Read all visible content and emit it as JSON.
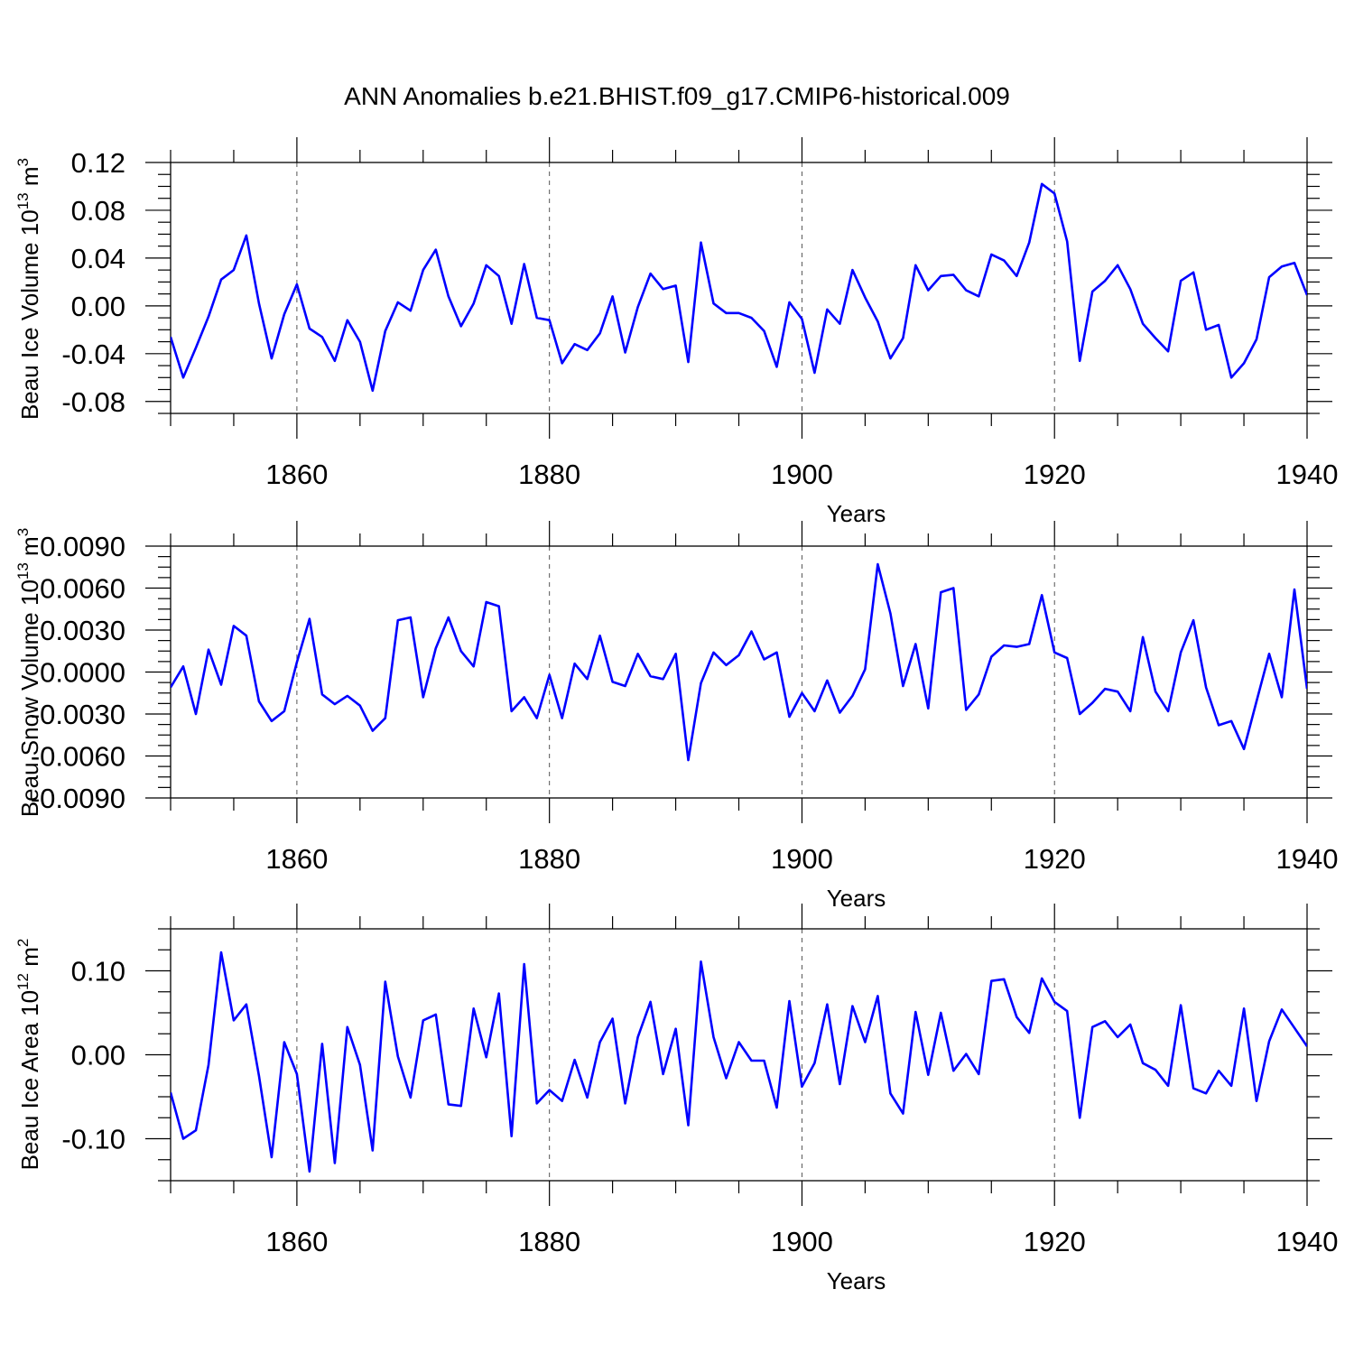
{
  "title": "ANN Anomalies b.e21.BHIST.f09_g17.CMIP6-historical.009",
  "colors": {
    "line": "#0000ff",
    "axis": "#000000",
    "grid": "#555555",
    "background": "#ffffff"
  },
  "chart_data": [
    {
      "type": "line",
      "ylabel": "Beau Ice Volume 10",
      "ylabel_exp": "13",
      "ylabel_unit": "m",
      "ylabel_unit_exp": "3",
      "xlabel": "Years",
      "xlim": [
        1850,
        1940
      ],
      "ylim": [
        -0.09,
        0.12
      ],
      "yticks": [
        0.12,
        0.08,
        0.04,
        0.0,
        -0.04,
        -0.08
      ],
      "ytick_labels": [
        "0.12",
        "0.08",
        "0.04",
        "0.00",
        "-0.04",
        "-0.08"
      ],
      "xticks": [
        1860,
        1880,
        1900,
        1920,
        1940
      ],
      "xtick_labels": [
        "1860",
        "1880",
        "1900",
        "1920",
        "1940"
      ],
      "grid": "vertical dashed at major x ticks",
      "series": [
        {
          "name": "Beau Ice Volume",
          "x_start": 1850,
          "values": [
            -0.026,
            -0.06,
            -0.035,
            -0.009,
            0.022,
            0.03,
            0.059,
            0.002,
            -0.044,
            -0.007,
            0.018,
            -0.019,
            -0.026,
            -0.046,
            -0.012,
            -0.03,
            -0.071,
            -0.021,
            0.003,
            -0.004,
            0.03,
            0.047,
            0.008,
            -0.017,
            0.002,
            0.034,
            0.025,
            -0.015,
            0.035,
            -0.01,
            -0.012,
            -0.048,
            -0.032,
            -0.037,
            -0.023,
            0.008,
            -0.039,
            -0.001,
            0.027,
            0.014,
            0.017,
            -0.047,
            0.053,
            0.002,
            -0.006,
            -0.006,
            -0.01,
            -0.021,
            -0.051,
            0.003,
            -0.011,
            -0.056,
            -0.003,
            -0.015,
            0.03,
            0.007,
            -0.013,
            -0.044,
            -0.027,
            0.034,
            0.013,
            0.025,
            0.026,
            0.013,
            0.008,
            0.043,
            0.038,
            0.025,
            0.053,
            0.102,
            0.094,
            0.054,
            -0.046,
            0.012,
            0.021,
            0.034,
            0.014,
            -0.015,
            -0.027,
            -0.038,
            0.021,
            0.028,
            -0.02,
            -0.016,
            -0.06,
            -0.048,
            -0.028,
            0.024,
            0.033,
            0.036,
            0.009
          ]
        }
      ]
    },
    {
      "type": "line",
      "ylabel": "Beau Snow Volume 10",
      "ylabel_exp": "13",
      "ylabel_unit": "m",
      "ylabel_unit_exp": "3",
      "xlabel": "Years",
      "xlim": [
        1850,
        1940
      ],
      "ylim": [
        -0.009,
        0.009
      ],
      "yticks": [
        0.009,
        0.006,
        0.003,
        0.0,
        -0.003,
        -0.006,
        -0.009
      ],
      "ytick_labels": [
        "0.0090",
        "0.0060",
        "0.0030",
        "0.0000",
        "-0.0030",
        "-0.0060",
        "-0.0090"
      ],
      "xticks": [
        1860,
        1880,
        1900,
        1920,
        1940
      ],
      "xtick_labels": [
        "1860",
        "1880",
        "1900",
        "1920",
        "1940"
      ],
      "grid": "vertical dashed at major x ticks",
      "series": [
        {
          "name": "Beau Snow Volume",
          "x_start": 1850,
          "values": [
            -0.0011,
            0.0004,
            -0.003,
            0.0016,
            -0.0009,
            0.0033,
            0.0026,
            -0.0021,
            -0.0035,
            -0.0028,
            0.0007,
            0.0038,
            -0.0016,
            -0.0023,
            -0.0017,
            -0.0024,
            -0.0042,
            -0.0033,
            0.0037,
            0.0039,
            -0.0018,
            0.0017,
            0.0039,
            0.0015,
            0.0004,
            0.005,
            0.0047,
            -0.0028,
            -0.0018,
            -0.0033,
            -0.0002,
            -0.0033,
            0.0006,
            -0.0005,
            0.0026,
            -0.0007,
            -0.001,
            0.0013,
            -0.0003,
            -0.0005,
            0.0013,
            -0.0063,
            -0.0008,
            0.0014,
            0.0005,
            0.0012,
            0.0029,
            0.0009,
            0.0014,
            -0.0032,
            -0.0015,
            -0.0028,
            -0.0006,
            -0.0029,
            -0.0017,
            0.0002,
            0.0077,
            0.0042,
            -0.001,
            0.002,
            -0.0026,
            0.0057,
            0.006,
            -0.0027,
            -0.0016,
            0.0011,
            0.0019,
            0.0018,
            0.002,
            0.0055,
            0.0014,
            0.001,
            -0.003,
            -0.0022,
            -0.0012,
            -0.0014,
            -0.0028,
            0.0025,
            -0.0014,
            -0.0028,
            0.0014,
            0.0037,
            -0.0011,
            -0.0038,
            -0.0035,
            -0.0055,
            -0.0021,
            0.0013,
            -0.0018,
            0.0059,
            -0.0012
          ]
        }
      ]
    },
    {
      "type": "line",
      "ylabel": "Beau Ice Area 10",
      "ylabel_exp": "12",
      "ylabel_unit": "m",
      "ylabel_unit_exp": "2",
      "xlabel": "Years",
      "xlim": [
        1850,
        1940
      ],
      "ylim": [
        -0.15,
        0.15
      ],
      "yticks": [
        0.1,
        0.0,
        -0.1
      ],
      "ytick_labels": [
        "0.10",
        "0.00",
        "-0.10"
      ],
      "xticks": [
        1860,
        1880,
        1900,
        1920,
        1940
      ],
      "xtick_labels": [
        "1860",
        "1880",
        "1900",
        "1920",
        "1940"
      ],
      "grid": "vertical dashed at major x ticks",
      "series": [
        {
          "name": "Beau Ice Area",
          "x_start": 1850,
          "values": [
            -0.045,
            -0.1,
            -0.09,
            -0.012,
            0.122,
            0.041,
            0.06,
            -0.025,
            -0.122,
            0.015,
            -0.023,
            -0.139,
            0.013,
            -0.129,
            0.033,
            -0.012,
            -0.114,
            0.087,
            -0.002,
            -0.051,
            0.041,
            0.048,
            -0.059,
            -0.061,
            0.055,
            -0.003,
            0.073,
            -0.097,
            0.108,
            -0.058,
            -0.042,
            -0.055,
            -0.006,
            -0.051,
            0.015,
            0.043,
            -0.058,
            0.021,
            0.063,
            -0.023,
            0.031,
            -0.084,
            0.111,
            0.021,
            -0.028,
            0.015,
            -0.007,
            -0.007,
            -0.063,
            0.064,
            -0.038,
            -0.01,
            0.06,
            -0.035,
            0.058,
            0.015,
            0.07,
            -0.046,
            -0.07,
            0.051,
            -0.024,
            0.05,
            -0.019,
            0.001,
            -0.023,
            0.088,
            0.09,
            0.045,
            0.026,
            0.091,
            0.063,
            0.052,
            -0.075,
            0.033,
            0.04,
            0.021,
            0.036,
            -0.01,
            -0.018,
            -0.037,
            0.059,
            -0.04,
            -0.046,
            -0.019,
            -0.037,
            0.055,
            -0.055,
            0.016,
            0.054,
            0.032,
            0.01
          ]
        }
      ]
    }
  ]
}
